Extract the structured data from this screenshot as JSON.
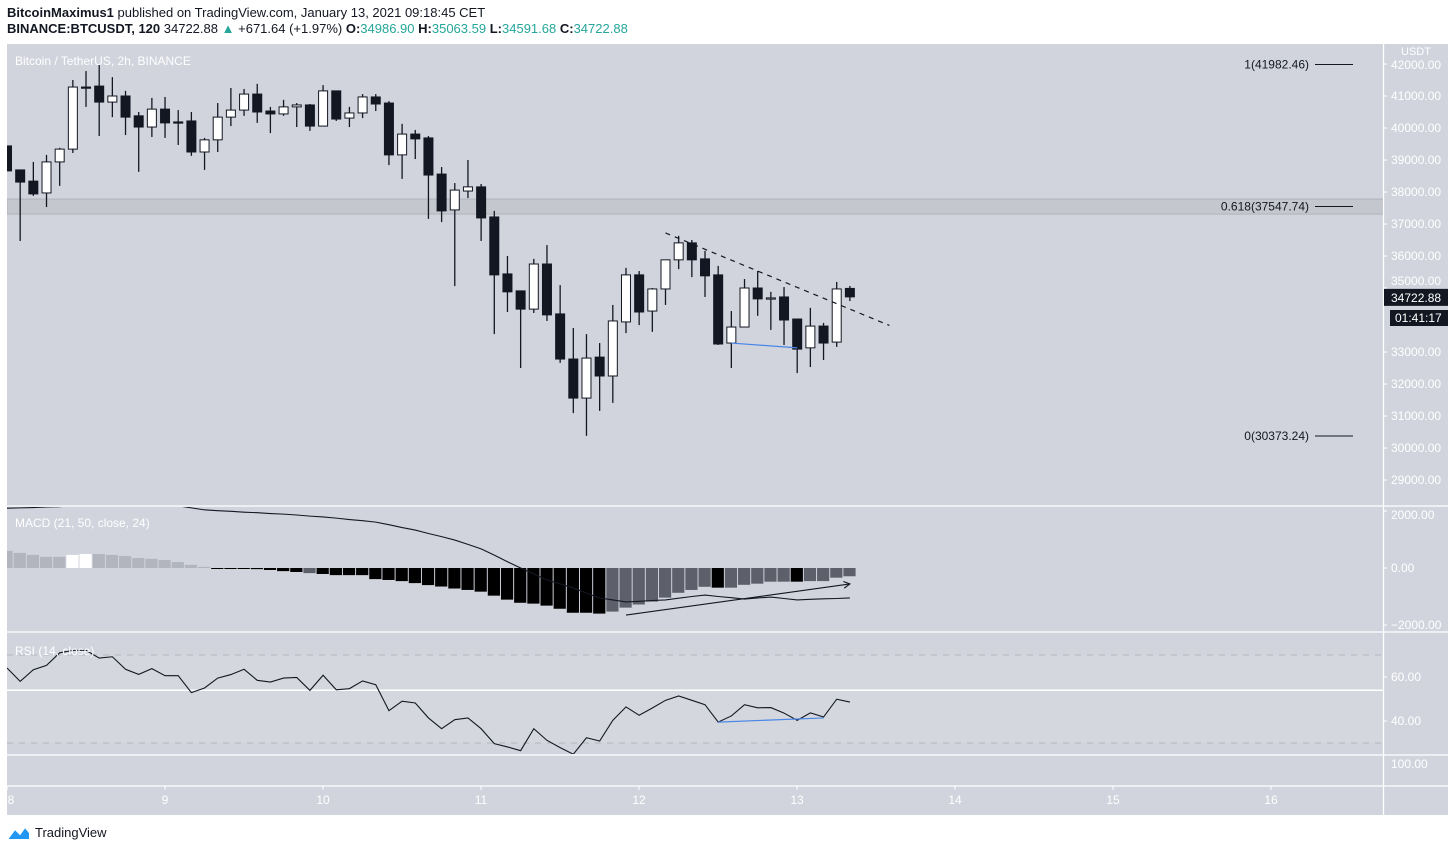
{
  "header": {
    "author": "BitcoinMaximus1",
    "published": "published on TradingView.com, January 13, 2021 09:18:45 CET",
    "symbol": "BINANCE:BTCUSDT, 120",
    "last": "34722.88",
    "change": "+671.64 (+1.97%)",
    "o_label": "O:",
    "o": "34986.90",
    "h_label": "H:",
    "h": "35063.59",
    "l_label": "L:",
    "l": "34591.68",
    "c_label": "C:",
    "c": "34722.88"
  },
  "footer": {
    "brand": "TradingView"
  },
  "colors": {
    "background": "#d1d4dc",
    "axis_text": "#ffffff",
    "candle_dark": "#131722",
    "candle_light": "#ffffff",
    "up_accent": "#26a69a",
    "drawing_blue": "#4a86e8",
    "hist_light": "#b2b5be",
    "hist_white": "#ffffff",
    "hist_black": "#000000",
    "hist_dark": "#5d606b"
  },
  "chart_data": {
    "type": "candlestick",
    "title": "Bitcoin / TetherUS, 2h, BINANCE",
    "interval": "2h",
    "currency": "USDT",
    "last_price_label": "34722.88",
    "countdown": "01:41:17",
    "price_axis": {
      "range": [
        28700,
        42300
      ],
      "ticks": [
        42000,
        41000,
        40000,
        39000,
        38000,
        37000,
        36000,
        35000,
        33000,
        32000,
        31000,
        30000,
        29000
      ]
    },
    "time_axis": {
      "ticks": [
        "8",
        "9",
        "10",
        "11",
        "12",
        "13",
        "14",
        "15",
        "16"
      ]
    },
    "candles_ohlc_by_day": {
      "2021-01-08": [
        [
          39440,
          39440,
          38660,
          38660
        ],
        [
          38690,
          38690,
          36470,
          38310
        ],
        [
          38340,
          38940,
          37880,
          37940
        ],
        [
          37970,
          39160,
          37530,
          38940
        ],
        [
          38940,
          39380,
          38190,
          39340
        ],
        [
          39340,
          41500,
          39220,
          41280
        ],
        [
          41280,
          41780,
          40660,
          41250
        ],
        [
          41310,
          41970,
          39750,
          40810
        ],
        [
          40810,
          41590,
          40340,
          41000
        ],
        [
          41000,
          41160,
          39780,
          40340
        ],
        [
          40380,
          40500,
          38630,
          40030
        ],
        [
          40030,
          40940,
          39720,
          40590
        ]
      ],
      "2021-01-09": [
        [
          40590,
          40970,
          39690,
          40160
        ],
        [
          40190,
          40560,
          39470,
          40170
        ],
        [
          40220,
          40500,
          39130,
          39250
        ],
        [
          39250,
          39690,
          38690,
          39630
        ],
        [
          39630,
          40780,
          39250,
          40340
        ],
        [
          40340,
          41250,
          40060,
          40560
        ],
        [
          40560,
          41220,
          40380,
          41060
        ],
        [
          41060,
          41380,
          40160,
          40500
        ],
        [
          40530,
          40660,
          39840,
          40440
        ],
        [
          40440,
          40880,
          40380,
          40660
        ],
        [
          40660,
          40780,
          40030,
          40720
        ],
        [
          40720,
          40750,
          39910,
          40060
        ]
      ],
      "2021-01-10": [
        [
          40060,
          41340,
          40060,
          41160
        ],
        [
          41160,
          41160,
          40220,
          40280
        ],
        [
          40310,
          40660,
          40030,
          40470
        ],
        [
          40470,
          41060,
          40310,
          40970
        ],
        [
          40970,
          41060,
          40530,
          40750
        ],
        [
          40780,
          40840,
          38840,
          39160
        ],
        [
          39160,
          40130,
          38410,
          39810
        ],
        [
          39810,
          39940,
          39030,
          39660
        ],
        [
          39690,
          39750,
          37160,
          38530
        ],
        [
          38560,
          38780,
          37060,
          37410
        ],
        [
          37440,
          38280,
          35060,
          38060
        ],
        [
          38030,
          39000,
          37810,
          38160
        ]
      ],
      "2021-01-11": [
        [
          38160,
          38250,
          36470,
          37190
        ],
        [
          37220,
          37410,
          33560,
          35410
        ],
        [
          35440,
          36000,
          34250,
          34880
        ],
        [
          34910,
          34910,
          32500,
          34340
        ],
        [
          34340,
          35910,
          34220,
          35750
        ],
        [
          35750,
          36340,
          33970,
          34160
        ],
        [
          34190,
          35090,
          32660,
          32780
        ],
        [
          32780,
          33750,
          31090,
          31560
        ],
        [
          31560,
          33560,
          30380,
          32810
        ],
        [
          32840,
          33280,
          31160,
          32250
        ],
        [
          32250,
          34470,
          31410,
          33970
        ],
        [
          33940,
          35630,
          33590,
          35410
        ]
      ],
      "2021-01-12": [
        [
          35410,
          35530,
          33840,
          34250
        ],
        [
          34280,
          35000,
          33630,
          34970
        ],
        [
          34970,
          35880,
          34470,
          35880
        ],
        [
          35880,
          36630,
          35590,
          36410
        ],
        [
          36410,
          36500,
          35340,
          35880
        ],
        [
          35910,
          36160,
          34720,
          35380
        ],
        [
          35410,
          35690,
          33220,
          33250
        ],
        [
          33280,
          34280,
          32500,
          33780
        ],
        [
          33780,
          35280,
          33780,
          35000
        ],
        [
          35000,
          35530,
          34130,
          34660
        ],
        [
          34690,
          34880,
          33690,
          34690
        ],
        [
          34720,
          35030,
          33220,
          34000
        ]
      ],
      "2021-01-13": [
        [
          34030,
          34030,
          32340,
          33090
        ],
        [
          33130,
          34380,
          32530,
          33810
        ],
        [
          33810,
          33910,
          32750,
          33280
        ],
        [
          33310,
          35190,
          33160,
          34970
        ],
        [
          34986.9,
          35063.59,
          34591.68,
          34722.88
        ]
      ]
    },
    "fib_levels": [
      {
        "label": "1(41982.46)",
        "price": 41982.46
      },
      {
        "label": "0.618(37547.74)",
        "price": 37547.74
      },
      {
        "label": "0(30373.24)",
        "price": 30373.24
      }
    ],
    "zone": {
      "from": 37310,
      "to": 37780
    },
    "drawings": {
      "dashed_trendline": [
        {
          "time": "2021-01-12 04:00",
          "price": 36720
        },
        {
          "time": "2021-01-13 14:00",
          "price": 33830
        }
      ],
      "support_line_blue": [
        {
          "time": "2021-01-12 14:00",
          "price": 33280
        },
        {
          "time": "2021-01-13 00:00",
          "price": 33130
        }
      ]
    },
    "macd": {
      "title": "MACD (21, 50, close, 24)",
      "axis_ticks": [
        {
          "value": 2000,
          "label": "2000.00"
        },
        {
          "value": 0,
          "label": "0.00"
        },
        {
          "value": -2000,
          "label": "−2000.00"
        }
      ],
      "histogram": [
        600,
        530,
        460,
        390,
        390,
        460,
        490,
        490,
        460,
        420,
        350,
        320,
        280,
        210,
        110,
        40,
        -10,
        -10,
        -10,
        -40,
        -70,
        -110,
        -140,
        -180,
        -210,
        -250,
        -250,
        -250,
        -390,
        -420,
        -460,
        -530,
        -600,
        -650,
        -720,
        -770,
        -830,
        -970,
        -1110,
        -1220,
        -1250,
        -1320,
        -1430,
        -1570,
        -1570,
        -1600,
        -1530,
        -1390,
        -1280,
        -1180,
        -1040,
        -870,
        -770,
        -660,
        -690,
        -690,
        -590,
        -550,
        -480,
        -480,
        -480,
        -460,
        -460,
        -340,
        -290
      ],
      "histogram_colors": [
        "light",
        "light",
        "light",
        "light",
        "light",
        "white",
        "white",
        "light",
        "light",
        "light",
        "light",
        "light",
        "light",
        "light",
        "light",
        "light",
        "black",
        "black",
        "black",
        "black",
        "black",
        "black",
        "black",
        "dark",
        "black",
        "black",
        "black",
        "black",
        "black",
        "black",
        "black",
        "black",
        "black",
        "black",
        "black",
        "black",
        "black",
        "black",
        "black",
        "black",
        "black",
        "black",
        "black",
        "black",
        "black",
        "black",
        "dark",
        "dark",
        "dark",
        "dark",
        "dark",
        "dark",
        "dark",
        "dark",
        "black",
        "dark",
        "dark",
        "dark",
        "dark",
        "dark",
        "black",
        "dark",
        "dark",
        "dark",
        "dark"
      ],
      "line": [
        2100,
        2110,
        2120,
        2140,
        2150,
        2220,
        2300,
        2330,
        2370,
        2400,
        2370,
        2330,
        2300,
        2180,
        2110,
        2040,
        2010,
        1990,
        1960,
        1940,
        1910,
        1890,
        1860,
        1820,
        1790,
        1750,
        1700,
        1660,
        1610,
        1520,
        1420,
        1330,
        1210,
        1100,
        980,
        830,
        670,
        450,
        220,
        0,
        -210,
        -420,
        -560,
        -700,
        -880,
        -1050,
        -1120,
        -1190,
        -1170,
        -1140,
        -1120,
        -1060,
        -1000,
        -950,
        -1000,
        -1040,
        -1090,
        -1050,
        -1020,
        -1070,
        -1120,
        -1100,
        -1080,
        -1070,
        -1050
      ],
      "arrow_trendline": [
        {
          "time": "2021-01-11 22:00",
          "value": -1650
        },
        {
          "time": "2021-01-13 08:00",
          "value": -560
        }
      ]
    },
    "rsi": {
      "title": "RSI (14, close)",
      "axis_ticks": [
        {
          "value": 60,
          "label": "60.00"
        },
        {
          "value": 40,
          "label": "40.00"
        }
      ],
      "bands": [
        70,
        30
      ],
      "hline": 54,
      "values": [
        64.1,
        58.0,
        63.3,
        65.3,
        71.0,
        72.1,
        72.1,
        68.6,
        69.2,
        63.5,
        61.2,
        63.8,
        60.6,
        60.6,
        52.9,
        55.0,
        59.5,
        61.1,
        63.5,
        58.5,
        57.7,
        59.5,
        59.8,
        53.9,
        60.8,
        54.2,
        54.7,
        58.2,
        56.5,
        44.7,
        49.0,
        48.2,
        41.4,
        36.5,
        40.6,
        41.4,
        36.5,
        29.7,
        28.2,
        26.5,
        36.5,
        31.2,
        27.9,
        24.9,
        32.4,
        30.9,
        40.3,
        46.4,
        42.6,
        45.9,
        49.4,
        51.4,
        49.4,
        47.4,
        39.5,
        42.3,
        47.4,
        46.0,
        46.1,
        43.6,
        40.3,
        43.7,
        41.8,
        49.9,
        48.6
      ],
      "support_line_blue": [
        {
          "time": "2021-01-12 12:00",
          "value": 39.5
        },
        {
          "time": "2021-01-13 04:00",
          "value": 41.4
        }
      ]
    },
    "empty_pane_tick": "100.00"
  }
}
